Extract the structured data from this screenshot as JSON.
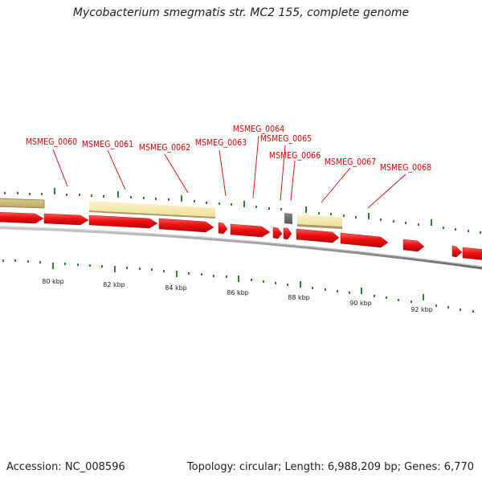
{
  "title": "Mycobacterium smegmatis str. MC2 155, complete genome",
  "footer": {
    "accession": "Accession: NC_008596",
    "summary": "Topology: circular; Length: 6,988,209 bp; Genes: 6,770"
  },
  "colors": {
    "cds": "#ee1111",
    "gene_box": "#f2e8a8",
    "gene_box_edge": "#a89a60",
    "tick": "#2a8a2a",
    "label": "#dd0000",
    "backbone": "#8a8a8a"
  },
  "gene_labels": [
    "MSMEG_0060",
    "MSMEG_0061",
    "MSMEG_0062",
    "MSMEG_0063",
    "MSMEG_0064",
    "MSMEG_0065",
    "MSMEG_0066",
    "MSMEG_0067",
    "MSMEG_0068"
  ],
  "scale_labels": [
    "80 kbp",
    "82 kbp",
    "84 kbp",
    "86 kbp",
    "88 kbp",
    "90 kbp",
    "92 kbp"
  ]
}
